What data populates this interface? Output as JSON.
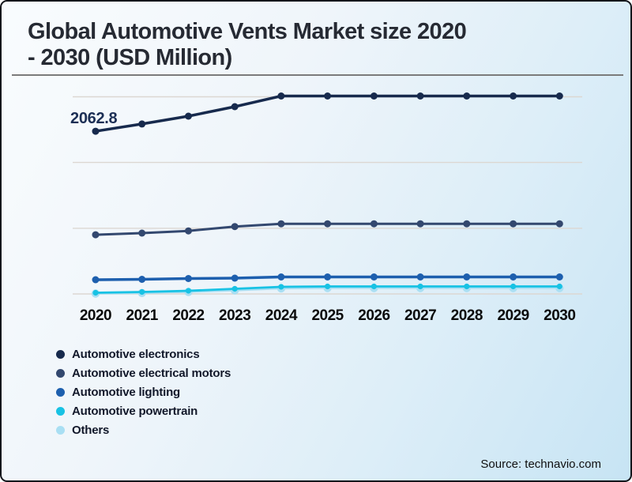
{
  "title_lines": [
    "Global Automotive Vents Market size 2020",
    "- 2030 (USD Million)"
  ],
  "source": "Source: technavio.com",
  "colors": {
    "background_top": "#f9fcfe",
    "background_bottom": "#c7e4f4",
    "border": "#14161b",
    "gridline": "#dcd7d2",
    "title": "#262a33",
    "annotation": "#1c2f55"
  },
  "chart_data": {
    "type": "line",
    "title": "Global Automotive Vents Market size 2020 - 2030 (USD Million)",
    "ylabel": "USD Million",
    "categories": [
      "2020",
      "2021",
      "2022",
      "2023",
      "2024",
      "2025",
      "2026",
      "2027",
      "2028",
      "2029",
      "2030"
    ],
    "series": [
      {
        "name": "Automotive electronics",
        "color": "#172a4d",
        "values": [
          2062.8,
          2155,
          2255,
          2375,
          2510,
          2510,
          2510,
          2510,
          2510,
          2510,
          2510
        ]
      },
      {
        "name": "Automotive electrical motors",
        "color": "#33486f",
        "values": [
          750,
          772,
          800,
          855,
          890,
          890,
          890,
          890,
          890,
          890,
          890
        ]
      },
      {
        "name": "Automotive lighting",
        "color": "#1d5fae",
        "values": [
          180,
          185,
          195,
          200,
          215,
          215,
          215,
          215,
          215,
          215,
          215
        ]
      },
      {
        "name": "Automotive powertrain",
        "color": "#18c2e4",
        "values": [
          15,
          25,
          40,
          65,
          90,
          95,
          95,
          95,
          95,
          95,
          95
        ]
      },
      {
        "name": "Others",
        "color": "#a9dff3",
        "values": [
          5,
          12,
          25,
          45,
          70,
          75,
          75,
          75,
          75,
          75,
          75
        ]
      }
    ],
    "annotations": [
      {
        "series": "Automotive electronics",
        "x": "2020",
        "text": "2062.8"
      }
    ],
    "axis": {
      "ymin": 0,
      "ymax": 2500,
      "gridline_values": [
        0,
        833,
        1667,
        2500
      ],
      "grid": "horizontal",
      "legend_position": "bottom-left",
      "x_axis_labels_visible": true,
      "y_axis_labels_visible": false
    }
  }
}
